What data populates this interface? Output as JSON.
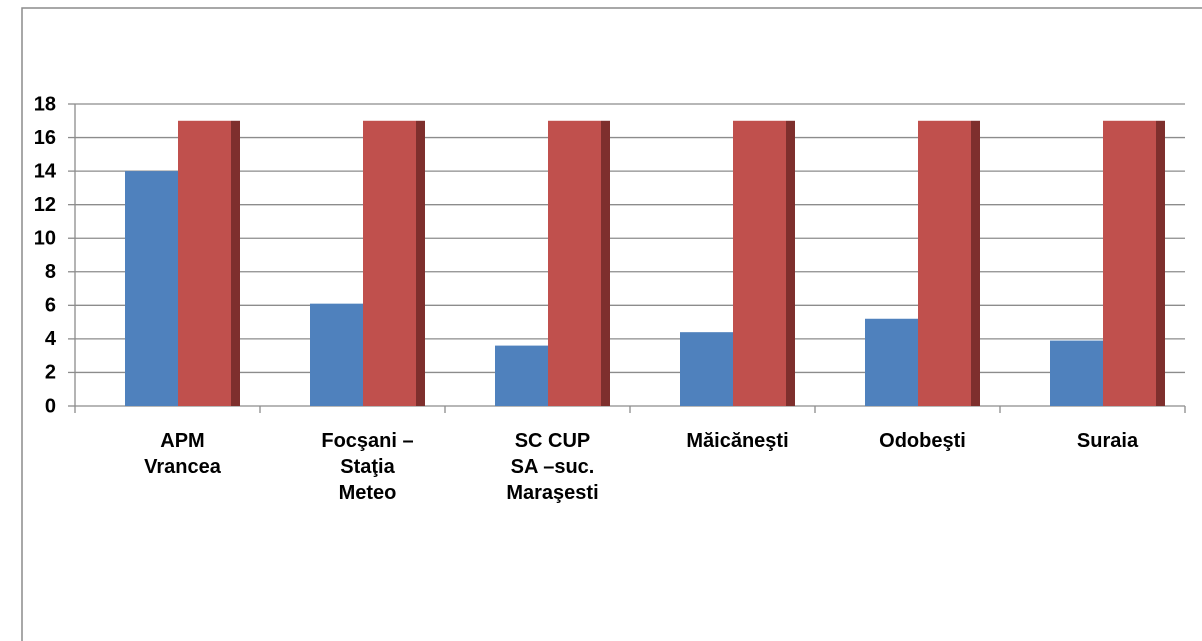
{
  "chart_data": {
    "type": "bar",
    "categories": [
      "APM\nVrancea",
      "Focşani –\nStaţia\nMeteo",
      "SC  CUP\nSA –suc.\nMaraşesti",
      "Măicăneşti",
      "Odobeşti",
      "Suraia"
    ],
    "series": [
      {
        "color": "#4f81bd",
        "values": [
          14,
          6.1,
          3.6,
          4.4,
          5.2,
          3.9
        ]
      },
      {
        "color": "#c0504d",
        "values": [
          17,
          17,
          17,
          17,
          17,
          17
        ]
      }
    ],
    "ylim": [
      0,
      18
    ],
    "yticks": [
      0,
      2,
      4,
      6,
      8,
      10,
      12,
      14,
      16,
      18
    ],
    "grid": true
  }
}
